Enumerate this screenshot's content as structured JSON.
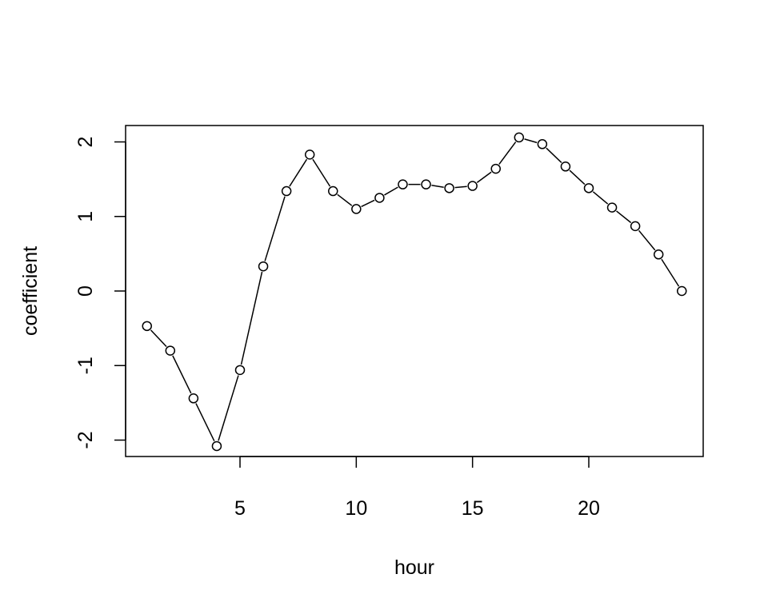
{
  "chart_data": {
    "type": "line",
    "title": "",
    "xlabel": "hour",
    "ylabel": "coefficient",
    "x": [
      1,
      2,
      3,
      4,
      5,
      6,
      7,
      8,
      9,
      10,
      11,
      12,
      13,
      14,
      15,
      16,
      17,
      18,
      19,
      20,
      21,
      22,
      23,
      24
    ],
    "series": [
      {
        "values": [
          -0.47,
          -0.8,
          -1.44,
          -2.08,
          -1.06,
          0.33,
          1.34,
          1.83,
          1.34,
          1.1,
          1.25,
          1.43,
          1.43,
          1.38,
          1.41,
          1.64,
          2.06,
          1.97,
          1.67,
          1.38,
          1.12,
          0.87,
          0.49,
          0.0
        ]
      }
    ],
    "xlim": [
      0.08,
      24.92
    ],
    "ylim": [
      -2.22,
      2.22
    ],
    "xticks": [
      5,
      10,
      15,
      20
    ],
    "yticks": [
      -2,
      -1,
      0,
      1,
      2
    ],
    "xtick_labels": [
      "5",
      "10",
      "15",
      "20"
    ],
    "ytick_labels": [
      "-2",
      "-1",
      "0",
      "1",
      "2"
    ],
    "grid": false,
    "legend": "none",
    "marker": "open-circle",
    "line_color": "#000000"
  }
}
